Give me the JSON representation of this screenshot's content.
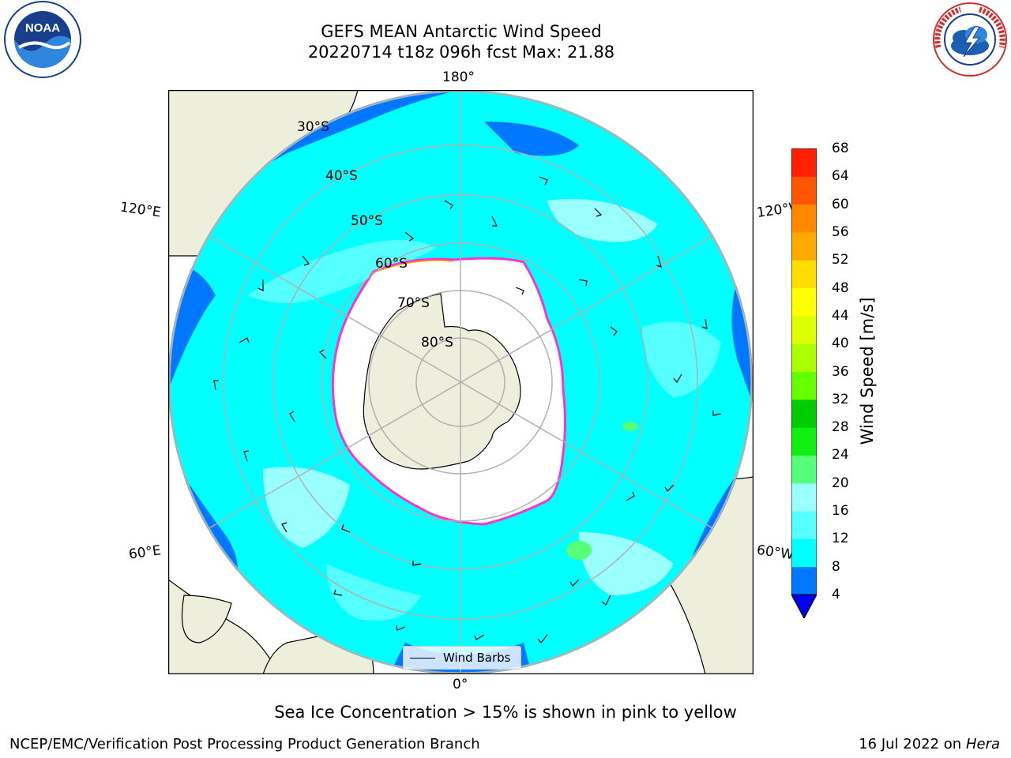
{
  "title": {
    "line1": "GEFS MEAN Antarctic Wind Speed",
    "line2": "20220714 t18z 096h fcst   Max: 21.88"
  },
  "logos": {
    "left": {
      "icon": "noaa-logo",
      "text": "NOAA"
    },
    "right": {
      "icon": "nws-logo",
      "text": "NATIONAL WEATHER SERVICE"
    }
  },
  "map": {
    "projection": "south-polar-stereographic",
    "lon_labels": {
      "top": "180°",
      "bottom": "0°",
      "left_upper": "120°E",
      "left_lower": "60°E",
      "right_upper": "120°W",
      "right_lower": "60°W"
    },
    "lat_labels": [
      "30°S",
      "40°S",
      "50°S",
      "60°S",
      "70°S",
      "80°S"
    ],
    "colors": {
      "land": "#eeeedc",
      "ice": "#ffffff",
      "ice_edge": "#ff33cc",
      "wind_4_8": "#0077ff",
      "wind_8_12": "#00ffff",
      "wind_12_16": "#55ffff",
      "wind_16_20": "#99ffff",
      "wind_20_24": "#55ff77"
    }
  },
  "legend": {
    "label": "Wind Barbs"
  },
  "colorbar": {
    "label": "Wind Speed [m/s]",
    "ticks": [
      "4",
      "8",
      "12",
      "16",
      "20",
      "24",
      "28",
      "32",
      "36",
      "40",
      "44",
      "48",
      "52",
      "56",
      "60",
      "64",
      "68"
    ],
    "colors": [
      "#0077ff",
      "#00ffff",
      "#55ffff",
      "#99ffff",
      "#55ff77",
      "#11ee11",
      "#00cc00",
      "#66ff00",
      "#aaff00",
      "#ddff00",
      "#ffff00",
      "#ffdd00",
      "#ffaa00",
      "#ff8800",
      "#ff5500",
      "#ff2200"
    ],
    "under_color": "#0000ee"
  },
  "caption": "Sea Ice Concentration > 15% is shown in pink to yellow",
  "footer": {
    "left": "NCEP/EMC/Verification Post Processing Product Generation Branch",
    "right_prefix": "16 Jul 2022 on ",
    "right_machine": "Hera"
  }
}
